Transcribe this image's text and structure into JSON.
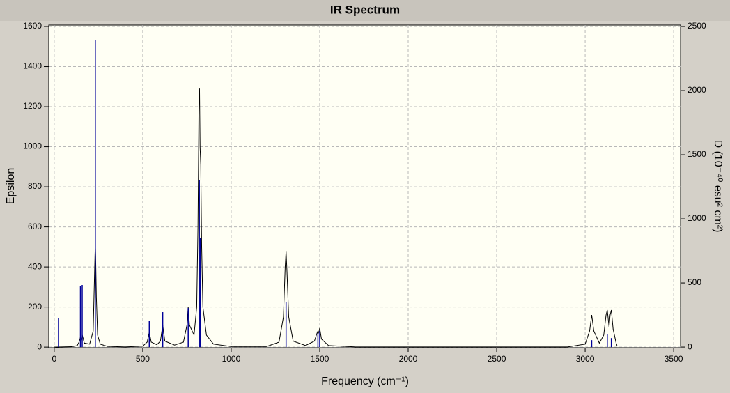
{
  "chart_data": {
    "type": "line",
    "title": "IR Spectrum",
    "x_label": "Frequency (cm⁻¹)",
    "y_label": "Epsilon",
    "y2_label": "D (10⁻⁴⁰ esu² cm²)",
    "xlim": [
      -31,
      3539
    ],
    "ylim": [
      -3,
      1607
    ],
    "y2lim": [
      -5,
      2511
    ],
    "xticks": [
      0,
      500,
      1000,
      1500,
      2000,
      2500,
      3000,
      3500
    ],
    "yticks": [
      0,
      200,
      400,
      600,
      800,
      1000,
      1200,
      1400,
      1600
    ],
    "y2ticks": [
      0,
      500,
      1000,
      1500,
      2000,
      2500
    ],
    "grid": true,
    "series": [
      {
        "type": "line",
        "color": "#000000",
        "x": [
          0,
          100,
          130,
          140,
          148,
          153,
          160,
          170,
          200,
          220,
          226,
          230,
          232,
          234,
          238,
          245,
          260,
          300,
          400,
          500,
          525,
          537,
          548,
          580,
          600,
          613,
          625,
          680,
          730,
          750,
          757,
          764,
          790,
          805,
          812,
          818,
          821,
          824,
          828,
          833,
          840,
          860,
          900,
          1000,
          1200,
          1270,
          1295,
          1305,
          1310,
          1315,
          1325,
          1350,
          1420,
          1470,
          1485,
          1490,
          1495,
          1500,
          1510,
          1550,
          1700,
          2900,
          3000,
          3025,
          3037,
          3049,
          3080,
          3105,
          3118,
          3125,
          3135,
          3141,
          3148,
          3158,
          3175,
          3180
        ],
        "values": [
          0,
          2,
          8,
          25,
          50,
          35,
          55,
          20,
          15,
          80,
          300,
          450,
          520,
          450,
          250,
          60,
          15,
          4,
          1,
          5,
          25,
          75,
          25,
          12,
          30,
          110,
          30,
          10,
          25,
          110,
          200,
          110,
          60,
          200,
          600,
          1240,
          1290,
          1000,
          910,
          500,
          200,
          60,
          15,
          3,
          3,
          25,
          150,
          400,
          480,
          380,
          150,
          30,
          8,
          30,
          70,
          80,
          72,
          95,
          40,
          8,
          1,
          1,
          15,
          80,
          160,
          80,
          20,
          60,
          160,
          185,
          100,
          160,
          185,
          90,
          20,
          8
        ]
      },
      {
        "type": "stick",
        "axis": "y2",
        "color": "#000099",
        "x": [
          24,
          148,
          158,
          232,
          537,
          613,
          757,
          820,
          826,
          1310,
          1490,
          1500,
          3037,
          3125,
          3148
        ],
        "values": [
          228,
          478,
          484,
          2397,
          207,
          272,
          304,
          1304,
          848,
          353,
          109,
          125,
          54,
          98,
          70
        ]
      }
    ]
  }
}
